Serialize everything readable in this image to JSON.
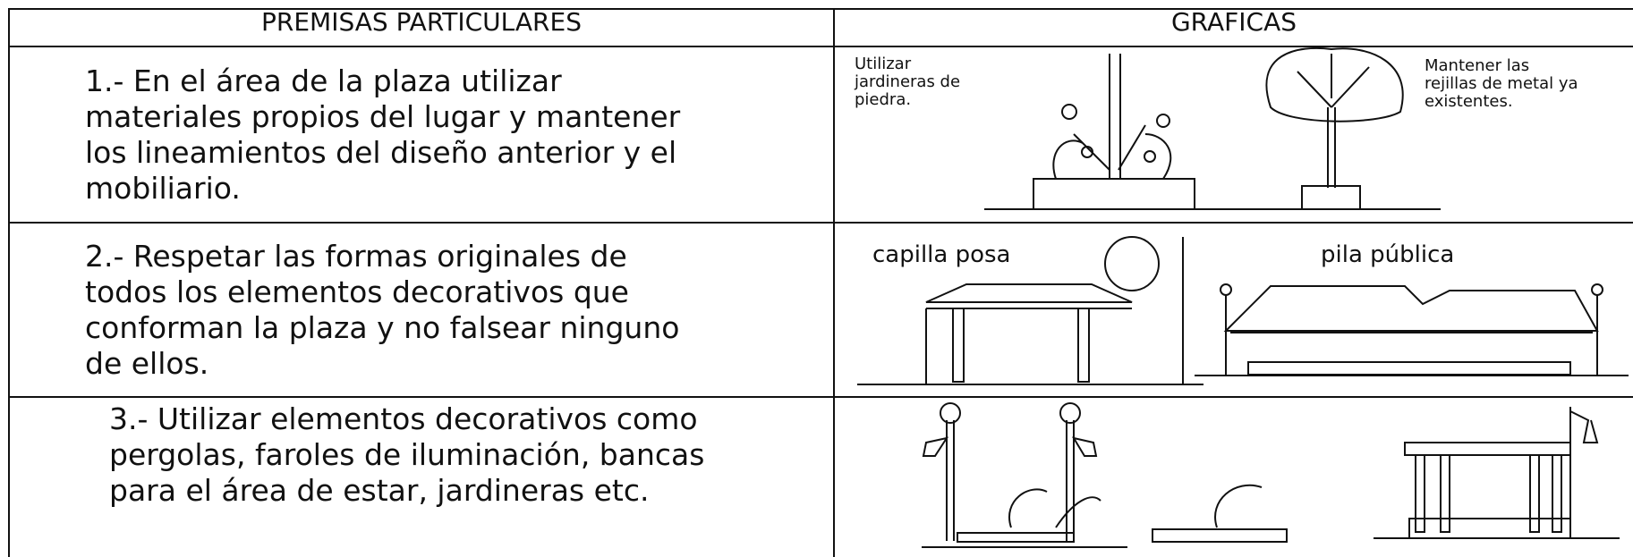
{
  "table": {
    "header": [
      "PREMISAS PARTICULARES",
      "GRAFICAS"
    ],
    "rows": [
      {
        "premise": [
          "1.-  En el área de la plaza utilizar",
          "materiales propios del lugar y mantener",
          "los lineamientos del diseño anterior y el",
          "mobiliario."
        ],
        "graphic_labels": [
          [
            "Utilizar",
            "jardineras de",
            "piedra."
          ],
          [
            "Mantener las",
            "rejillas de metal ya",
            "existentes."
          ]
        ]
      },
      {
        "premise": [
          "2.-  Respetar las formas originales de",
          "todos los elementos decorativos que",
          "conforman la plaza y no falsear ninguno",
          "de ellos."
        ],
        "graphic_labels": [
          [
            "capilla posa"
          ],
          [
            "pila pública"
          ]
        ]
      },
      {
        "premise": [
          "3.-  Utilizar elementos decorativos como",
          "pergolas, faroles de iluminación, bancas",
          "para el área de estar, jardineras etc."
        ],
        "graphic_labels": []
      }
    ]
  }
}
